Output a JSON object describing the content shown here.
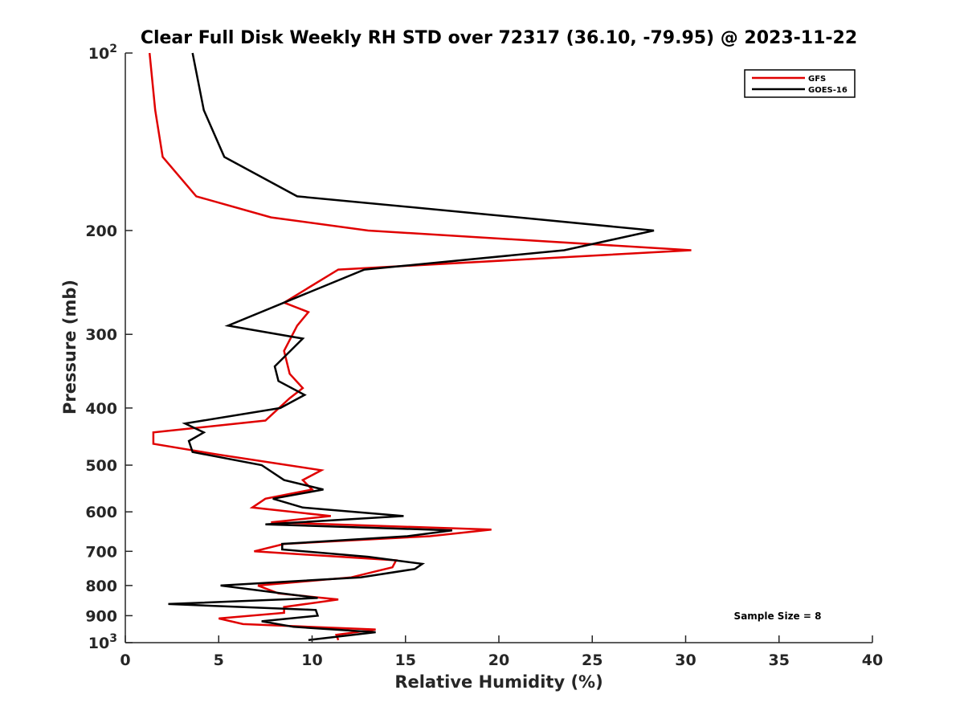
{
  "chart_data": {
    "type": "line",
    "title": "Clear Full Disk Weekly RH STD over 72317 (36.10, -79.95) @ 2023-11-22",
    "xlabel": "Relative Humidity (%)",
    "ylabel": "Pressure (mb)",
    "xlim": [
      0,
      40
    ],
    "ylim": [
      100,
      1000
    ],
    "y_scale": "log",
    "y_reversed": true,
    "x_ticks": [
      0,
      5,
      10,
      15,
      20,
      25,
      30,
      35,
      40
    ],
    "x_tick_labels": [
      "0",
      "5",
      "10",
      "15",
      "20",
      "25",
      "30",
      "35",
      "40"
    ],
    "y_ticks": [
      100,
      200,
      300,
      400,
      500,
      600,
      700,
      800,
      900,
      1000
    ],
    "y_tick_labels": [
      {
        "base": "10",
        "exp": "2"
      },
      {
        "base": "200",
        "exp": ""
      },
      {
        "base": "300",
        "exp": ""
      },
      {
        "base": "400",
        "exp": ""
      },
      {
        "base": "500",
        "exp": ""
      },
      {
        "base": "600",
        "exp": ""
      },
      {
        "base": "700",
        "exp": ""
      },
      {
        "base": "800",
        "exp": ""
      },
      {
        "base": "900",
        "exp": ""
      },
      {
        "base": "10",
        "exp": "3"
      }
    ],
    "grid": false,
    "legend_position": "top-right",
    "annotation": "Sample Size = 8",
    "series": [
      {
        "name": "GFS",
        "color": "#e00000",
        "points": [
          [
            1.3,
            100
          ],
          [
            1.6,
            125
          ],
          [
            2.0,
            150
          ],
          [
            3.8,
            175
          ],
          [
            7.8,
            190
          ],
          [
            13.0,
            200
          ],
          [
            30.3,
            216
          ],
          [
            11.4,
            233
          ],
          [
            8.5,
            265
          ],
          [
            9.8,
            275
          ],
          [
            9.2,
            290
          ],
          [
            8.5,
            320
          ],
          [
            8.8,
            350
          ],
          [
            9.5,
            370
          ],
          [
            8.8,
            385
          ],
          [
            7.5,
            420
          ],
          [
            1.5,
            440
          ],
          [
            1.5,
            460
          ],
          [
            5.0,
            480
          ],
          [
            10.5,
            510
          ],
          [
            9.5,
            530
          ],
          [
            10.0,
            550
          ],
          [
            7.5,
            570
          ],
          [
            6.8,
            590
          ],
          [
            11.0,
            610
          ],
          [
            7.8,
            625
          ],
          [
            19.6,
            643
          ],
          [
            16.3,
            660
          ],
          [
            8.5,
            680
          ],
          [
            6.9,
            700
          ],
          [
            14.5,
            725
          ],
          [
            14.3,
            745
          ],
          [
            12.1,
            775
          ],
          [
            7.1,
            800
          ],
          [
            8.2,
            825
          ],
          [
            11.4,
            845
          ],
          [
            8.5,
            870
          ],
          [
            8.5,
            890
          ],
          [
            5.0,
            910
          ],
          [
            6.3,
            930
          ],
          [
            13.4,
            950
          ],
          [
            11.3,
            970
          ],
          [
            11.4,
            990
          ]
        ]
      },
      {
        "name": "GOES-16",
        "color": "#000000",
        "points": [
          [
            3.6,
            100
          ],
          [
            4.2,
            125
          ],
          [
            5.3,
            150
          ],
          [
            9.2,
            175
          ],
          [
            19.5,
            188
          ],
          [
            28.3,
            200
          ],
          [
            23.5,
            216
          ],
          [
            12.8,
            233
          ],
          [
            8.5,
            265
          ],
          [
            5.5,
            290
          ],
          [
            9.5,
            305
          ],
          [
            8.0,
            340
          ],
          [
            8.2,
            360
          ],
          [
            9.6,
            380
          ],
          [
            8.3,
            400
          ],
          [
            3.2,
            425
          ],
          [
            4.2,
            440
          ],
          [
            3.4,
            455
          ],
          [
            3.6,
            475
          ],
          [
            7.3,
            500
          ],
          [
            8.5,
            530
          ],
          [
            10.6,
            550
          ],
          [
            7.9,
            570
          ],
          [
            9.5,
            590
          ],
          [
            14.9,
            610
          ],
          [
            7.5,
            630
          ],
          [
            17.5,
            645
          ],
          [
            15.1,
            660
          ],
          [
            8.4,
            680
          ],
          [
            8.4,
            695
          ],
          [
            13.0,
            715
          ],
          [
            15.9,
            735
          ],
          [
            15.5,
            750
          ],
          [
            12.6,
            775
          ],
          [
            5.1,
            800
          ],
          [
            10.3,
            840
          ],
          [
            2.3,
            860
          ],
          [
            10.2,
            880
          ],
          [
            10.3,
            900
          ],
          [
            7.3,
            920
          ],
          [
            9.0,
            940
          ],
          [
            13.4,
            960
          ],
          [
            9.8,
            990
          ]
        ]
      }
    ]
  }
}
